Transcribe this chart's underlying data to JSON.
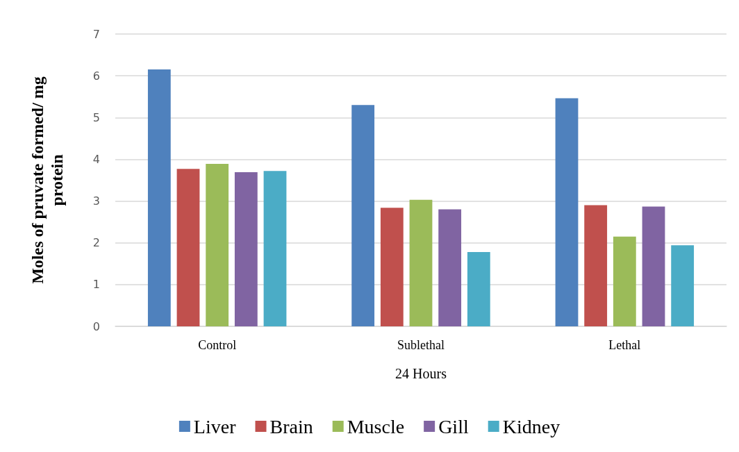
{
  "chart_data": {
    "type": "bar",
    "xlabel": "24 Hours",
    "ylabel": "Moles of pruvate formed/ mg\nprotein",
    "categories": [
      "Control",
      "Sublethal",
      "Lethal"
    ],
    "series": [
      {
        "name": "Liver",
        "color": "#4f81bd",
        "values": [
          6.15,
          5.3,
          5.46
        ]
      },
      {
        "name": "Brain",
        "color": "#c0504d",
        "values": [
          3.77,
          2.84,
          2.9
        ]
      },
      {
        "name": "Muscle",
        "color": "#9bbb59",
        "values": [
          3.89,
          3.03,
          2.15
        ]
      },
      {
        "name": "Gill",
        "color": "#8064a2",
        "values": [
          3.69,
          2.8,
          2.87
        ]
      },
      {
        "name": "Kidney",
        "color": "#4bacc6",
        "values": [
          3.72,
          1.78,
          1.94
        ]
      }
    ],
    "ylim": [
      0,
      7
    ],
    "yticks": [
      0,
      1,
      2,
      3,
      4,
      5,
      6,
      7
    ],
    "grid": "y",
    "legend": "bottom"
  }
}
